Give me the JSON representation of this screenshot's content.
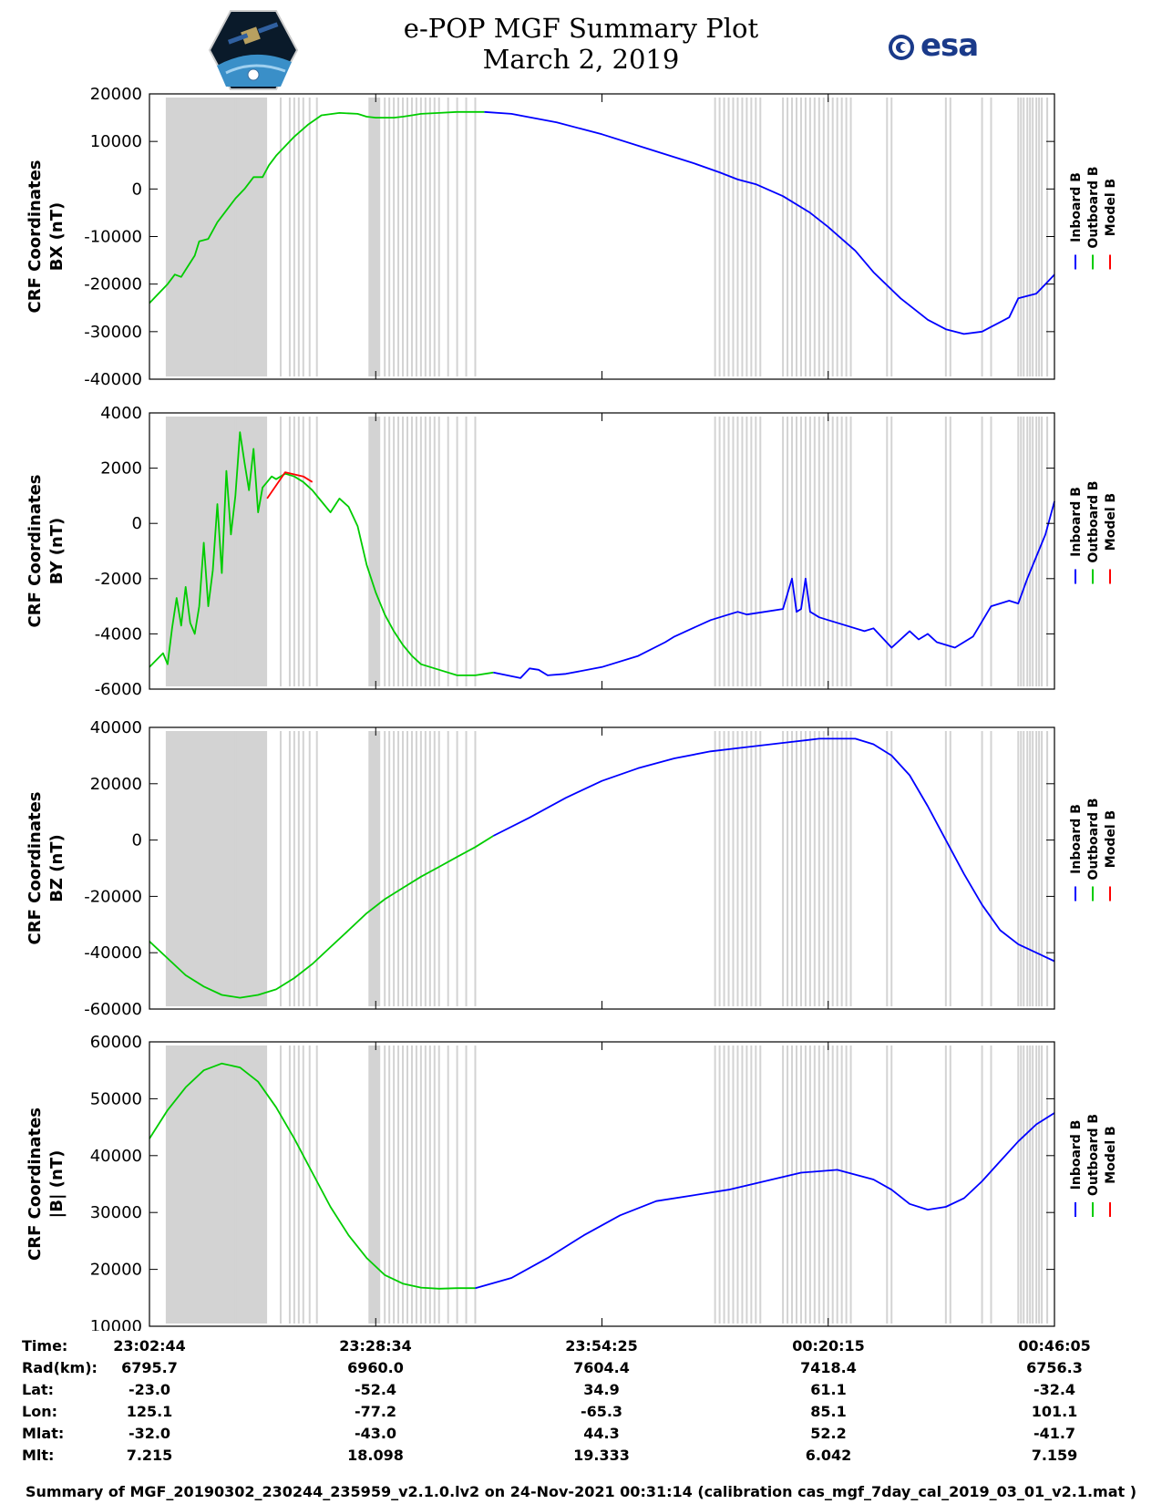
{
  "title": {
    "line1": "e-POP MGF Summary Plot",
    "line2": "March 2, 2019"
  },
  "logos": {
    "left": "cassiope-mission-logo",
    "right": "esa"
  },
  "esa_text": "esa",
  "colors": {
    "inboard": "#0000ff",
    "outboard": "#00cc00",
    "model": "#ff0000",
    "shade": "#d3d3d3"
  },
  "legend": [
    "Inboard B",
    "Outboard B",
    "Model B"
  ],
  "chart_data": [
    {
      "type": "line",
      "ylabel": [
        "CRF Coordinates",
        "BX (nT)"
      ],
      "ylim": [
        -40000,
        20000
      ],
      "yticks": [
        "20000",
        "10000",
        "0",
        "-10000",
        "-20000",
        "-30000",
        "-40000"
      ],
      "xlim": [
        0,
        100
      ],
      "series": [
        {
          "name": "Outboard B",
          "x": [
            0,
            1,
            2,
            2.8,
            3.5,
            4,
            5,
            5.5,
            6.5,
            7.5,
            8.5,
            9.5,
            10.5,
            11.5,
            12.5,
            13.2,
            14,
            15,
            16,
            17.5,
            19,
            21,
            23,
            24,
            25,
            27,
            28,
            29,
            30,
            32,
            34,
            35.5,
            37
          ],
          "values": [
            -24000,
            -22000,
            -20000,
            -18000,
            -18500,
            -17000,
            -14000,
            -11000,
            -10500,
            -7000,
            -4500,
            -2000,
            0,
            2500,
            2500,
            5000,
            7000,
            9000,
            11000,
            13500,
            15500,
            16000,
            15800,
            15200,
            15000,
            15000,
            15200,
            15500,
            15800,
            16000,
            16200,
            16200,
            16200
          ]
        },
        {
          "name": "Inboard B",
          "x": [
            37,
            40,
            45,
            50,
            55,
            60,
            63,
            65,
            67,
            70,
            73,
            75,
            78,
            80,
            83,
            86,
            88,
            90,
            92,
            93,
            94,
            95,
            96,
            98,
            99,
            100
          ],
          "values": [
            16200,
            15800,
            14000,
            11500,
            8500,
            5500,
            3500,
            2000,
            1000,
            -1500,
            -5000,
            -8000,
            -13000,
            -17500,
            -23000,
            -27500,
            -29500,
            -30500,
            -30000,
            -29000,
            -28000,
            -27000,
            -23000,
            -22000,
            -20000,
            -18000
          ]
        }
      ]
    },
    {
      "type": "line",
      "ylabel": [
        "CRF Coordinates",
        "BY (nT)"
      ],
      "ylim": [
        -6000,
        4000
      ],
      "yticks": [
        "4000",
        "2000",
        "0",
        "-2000",
        "-4000",
        "-6000"
      ],
      "xlim": [
        0,
        100
      ],
      "series": [
        {
          "name": "Outboard B",
          "x": [
            0,
            1.5,
            2,
            2.5,
            3,
            3.5,
            4,
            4.5,
            5,
            5.5,
            6,
            6.5,
            7,
            7.5,
            8,
            8.5,
            9,
            9.5,
            10,
            10.5,
            11,
            11.5,
            12,
            12.5,
            13,
            13.5,
            14,
            15,
            16,
            17,
            18,
            19,
            20,
            21,
            22,
            23,
            24,
            25,
            26,
            27,
            28,
            29,
            30,
            32,
            34,
            36,
            38
          ],
          "values": [
            -5200,
            -4700,
            -5100,
            -3800,
            -2700,
            -3700,
            -2300,
            -3600,
            -4000,
            -3000,
            -700,
            -3000,
            -1700,
            700,
            -1800,
            1900,
            -400,
            1000,
            3300,
            2200,
            1200,
            2700,
            400,
            1300,
            1500,
            1700,
            1600,
            1800,
            1700,
            1500,
            1200,
            800,
            400,
            900,
            600,
            -100,
            -1500,
            -2500,
            -3300,
            -3900,
            -4400,
            -4800,
            -5100,
            -5300,
            -5500,
            -5500,
            -5400
          ]
        },
        {
          "name": "Model B",
          "x": [
            13,
            15,
            17,
            18
          ],
          "values": [
            900,
            1850,
            1700,
            1500
          ]
        },
        {
          "name": "Inboard B",
          "x": [
            38,
            41,
            42,
            43,
            44,
            46,
            50,
            54,
            57,
            58,
            60,
            62,
            64,
            65,
            66,
            68,
            70,
            71,
            71.5,
            72,
            72.5,
            73,
            73.5,
            74,
            75,
            77,
            79,
            80,
            82,
            84,
            85,
            86,
            87,
            89,
            91,
            93,
            95,
            96,
            97,
            98,
            99,
            100
          ],
          "values": [
            -5400,
            -5600,
            -5250,
            -5300,
            -5500,
            -5450,
            -5200,
            -4800,
            -4300,
            -4100,
            -3800,
            -3500,
            -3300,
            -3200,
            -3300,
            -3200,
            -3100,
            -2000,
            -3200,
            -3100,
            -2000,
            -3200,
            -3300,
            -3400,
            -3500,
            -3700,
            -3900,
            -3800,
            -4500,
            -3900,
            -4200,
            -4000,
            -4300,
            -4500,
            -4100,
            -3000,
            -2800,
            -2900,
            -2000,
            -1200,
            -400,
            800
          ]
        }
      ]
    },
    {
      "type": "line",
      "ylabel": [
        "CRF Coordinates",
        "BZ (nT)"
      ],
      "ylim": [
        -60000,
        40000
      ],
      "yticks": [
        "40000",
        "20000",
        "0",
        "-20000",
        "-40000",
        "-60000"
      ],
      "xlim": [
        0,
        100
      ],
      "series": [
        {
          "name": "Outboard B",
          "x": [
            0,
            2,
            4,
            6,
            8,
            10,
            12,
            14,
            16,
            18,
            20,
            22,
            24,
            26,
            28,
            30,
            32,
            34,
            36,
            38
          ],
          "values": [
            -36000,
            -42000,
            -48000,
            -52000,
            -55000,
            -56000,
            -55000,
            -53000,
            -49000,
            -44000,
            -38000,
            -32000,
            -26000,
            -21000,
            -17000,
            -13000,
            -9500,
            -6000,
            -2500,
            1500
          ]
        },
        {
          "name": "Inboard B",
          "x": [
            38,
            42,
            46,
            50,
            54,
            58,
            62,
            66,
            70,
            74,
            78,
            80,
            82,
            84,
            86,
            88,
            90,
            92,
            94,
            96,
            98,
            100
          ],
          "values": [
            1500,
            8000,
            15000,
            21000,
            25500,
            29000,
            31500,
            33000,
            34500,
            36000,
            36000,
            34000,
            30000,
            23000,
            12000,
            0,
            -12000,
            -23000,
            -32000,
            -37000,
            -40000,
            -43000
          ]
        }
      ]
    },
    {
      "type": "line",
      "ylabel": [
        "CRF Coordinates",
        "|B| (nT)"
      ],
      "ylim": [
        10000,
        60000
      ],
      "yticks": [
        "60000",
        "50000",
        "40000",
        "30000",
        "20000",
        "10000"
      ],
      "xlim": [
        0,
        100
      ],
      "series": [
        {
          "name": "Outboard B",
          "x": [
            0,
            2,
            4,
            6,
            8,
            10,
            12,
            14,
            16,
            18,
            20,
            22,
            24,
            26,
            28,
            30,
            32,
            34,
            36
          ],
          "values": [
            43000,
            48000,
            52000,
            55000,
            56200,
            55500,
            53000,
            48500,
            43000,
            37000,
            31000,
            26000,
            22000,
            19000,
            17500,
            16800,
            16600,
            16700,
            16700
          ]
        },
        {
          "name": "Inboard B",
          "x": [
            36,
            40,
            44,
            48,
            52,
            56,
            60,
            64,
            68,
            72,
            76,
            80,
            82,
            84,
            86,
            88,
            90,
            92,
            94,
            96,
            98,
            100
          ],
          "values": [
            16700,
            18500,
            22000,
            26000,
            29500,
            32000,
            33000,
            34000,
            35500,
            37000,
            37500,
            35800,
            34000,
            31500,
            30500,
            31000,
            32500,
            35500,
            39000,
            42500,
            45500,
            47500
          ]
        }
      ]
    }
  ],
  "time_axis": {
    "rows": [
      {
        "label": "Time:",
        "values": [
          "23:02:44",
          "23:28:34",
          "23:54:25",
          "00:20:15",
          "00:46:05"
        ]
      },
      {
        "label": "Rad(km):",
        "values": [
          "6795.7",
          "6960.0",
          "7604.4",
          "7418.4",
          "6756.3"
        ]
      },
      {
        "label": "Lat:",
        "values": [
          "-23.0",
          "-52.4",
          "34.9",
          "61.1",
          "-32.4"
        ]
      },
      {
        "label": "Lon:",
        "values": [
          "125.1",
          "-77.2",
          "-65.3",
          "85.1",
          "101.1"
        ]
      },
      {
        "label": "Mlat:",
        "values": [
          "-32.0",
          "-43.0",
          "44.3",
          "52.2",
          "-41.7"
        ]
      },
      {
        "label": "Mlt:",
        "values": [
          "7.215",
          "18.098",
          "19.333",
          "6.042",
          "7.159"
        ]
      }
    ]
  },
  "shade_regions": [
    [
      1.8,
      13
    ],
    [
      24.2,
      25.5
    ]
  ],
  "shade_lines": [
    9.5,
    10,
    14.5,
    15.5,
    16,
    16.5,
    17,
    17.7,
    18.5,
    26,
    26.5,
    27,
    27.5,
    28,
    28.5,
    29,
    29.5,
    30,
    30.5,
    31,
    31.5,
    32,
    33,
    34,
    35,
    36,
    62.5,
    63,
    63.5,
    64,
    64.5,
    65,
    65.5,
    66,
    66.5,
    67,
    67.5,
    70,
    70.5,
    71,
    71.5,
    72,
    72.5,
    73,
    73.5,
    74,
    74.5,
    75,
    75.5,
    76,
    76.5,
    77,
    77.5,
    81.5,
    82,
    88,
    88.5,
    92,
    93,
    96,
    96.3,
    96.6,
    97,
    97.3,
    97.6,
    98,
    98.3,
    98.6,
    99.2
  ],
  "footer": "Summary of MGF_20190302_230244_235959_v2.1.0.lv2 on 24-Nov-2021 00:31:14 (calibration cas_mgf_7day_cal_2019_03_01_v2.1.mat )"
}
